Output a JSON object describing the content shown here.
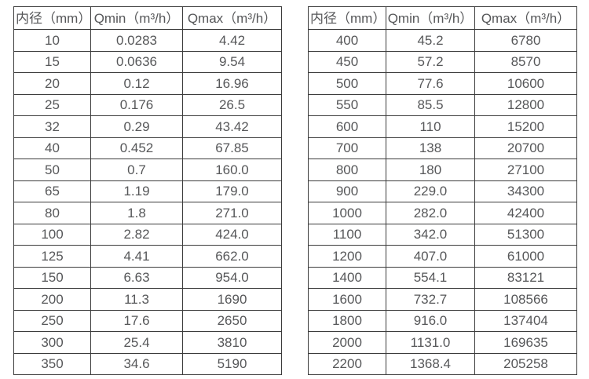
{
  "page": {
    "background_color": "#ffffff",
    "table_border_color": "#3c3c3c",
    "text_color": "#565759"
  },
  "tables": [
    {
      "headers": [
        "内径（mm）",
        "Qmin（m³/h）",
        "Qmax（m³/h）"
      ],
      "rows": [
        [
          "10",
          "0.0283",
          "4.42"
        ],
        [
          "15",
          "0.0636",
          "9.54"
        ],
        [
          "20",
          "0.12",
          "16.96"
        ],
        [
          "25",
          "0.176",
          "26.5"
        ],
        [
          "32",
          "0.29",
          "43.42"
        ],
        [
          "40",
          "0.452",
          "67.85"
        ],
        [
          "50",
          "0.7",
          "160.0"
        ],
        [
          "65",
          "1.19",
          "179.0"
        ],
        [
          "80",
          "1.8",
          "271.0"
        ],
        [
          "100",
          "2.82",
          "424.0"
        ],
        [
          "125",
          "4.41",
          "662.0"
        ],
        [
          "150",
          "6.63",
          "954.0"
        ],
        [
          "200",
          "11.3",
          "1690"
        ],
        [
          "250",
          "17.6",
          "2650"
        ],
        [
          "300",
          "25.4",
          "3810"
        ],
        [
          "350",
          "34.6",
          "5190"
        ]
      ]
    },
    {
      "headers": [
        "内径（mm）",
        "Qmin（m³/h）",
        "Qmax（m³/h）"
      ],
      "rows": [
        [
          "400",
          "45.2",
          "6780"
        ],
        [
          "450",
          "57.2",
          "8570"
        ],
        [
          "500",
          "77.6",
          "10600"
        ],
        [
          "550",
          "85.5",
          "12800"
        ],
        [
          "600",
          "110",
          "15200"
        ],
        [
          "700",
          "138",
          "20700"
        ],
        [
          "800",
          "180",
          "27100"
        ],
        [
          "900",
          "229.0",
          "34300"
        ],
        [
          "1000",
          "282.0",
          "42400"
        ],
        [
          "1100",
          "342.0",
          "51300"
        ],
        [
          "1200",
          "407.0",
          "61000"
        ],
        [
          "1400",
          "554.1",
          "83121"
        ],
        [
          "1600",
          "732.7",
          "108566"
        ],
        [
          "1800",
          "916.0",
          "137404"
        ],
        [
          "2000",
          "1131.0",
          "169635"
        ],
        [
          "2200",
          "1368.4",
          "205258"
        ]
      ]
    }
  ]
}
